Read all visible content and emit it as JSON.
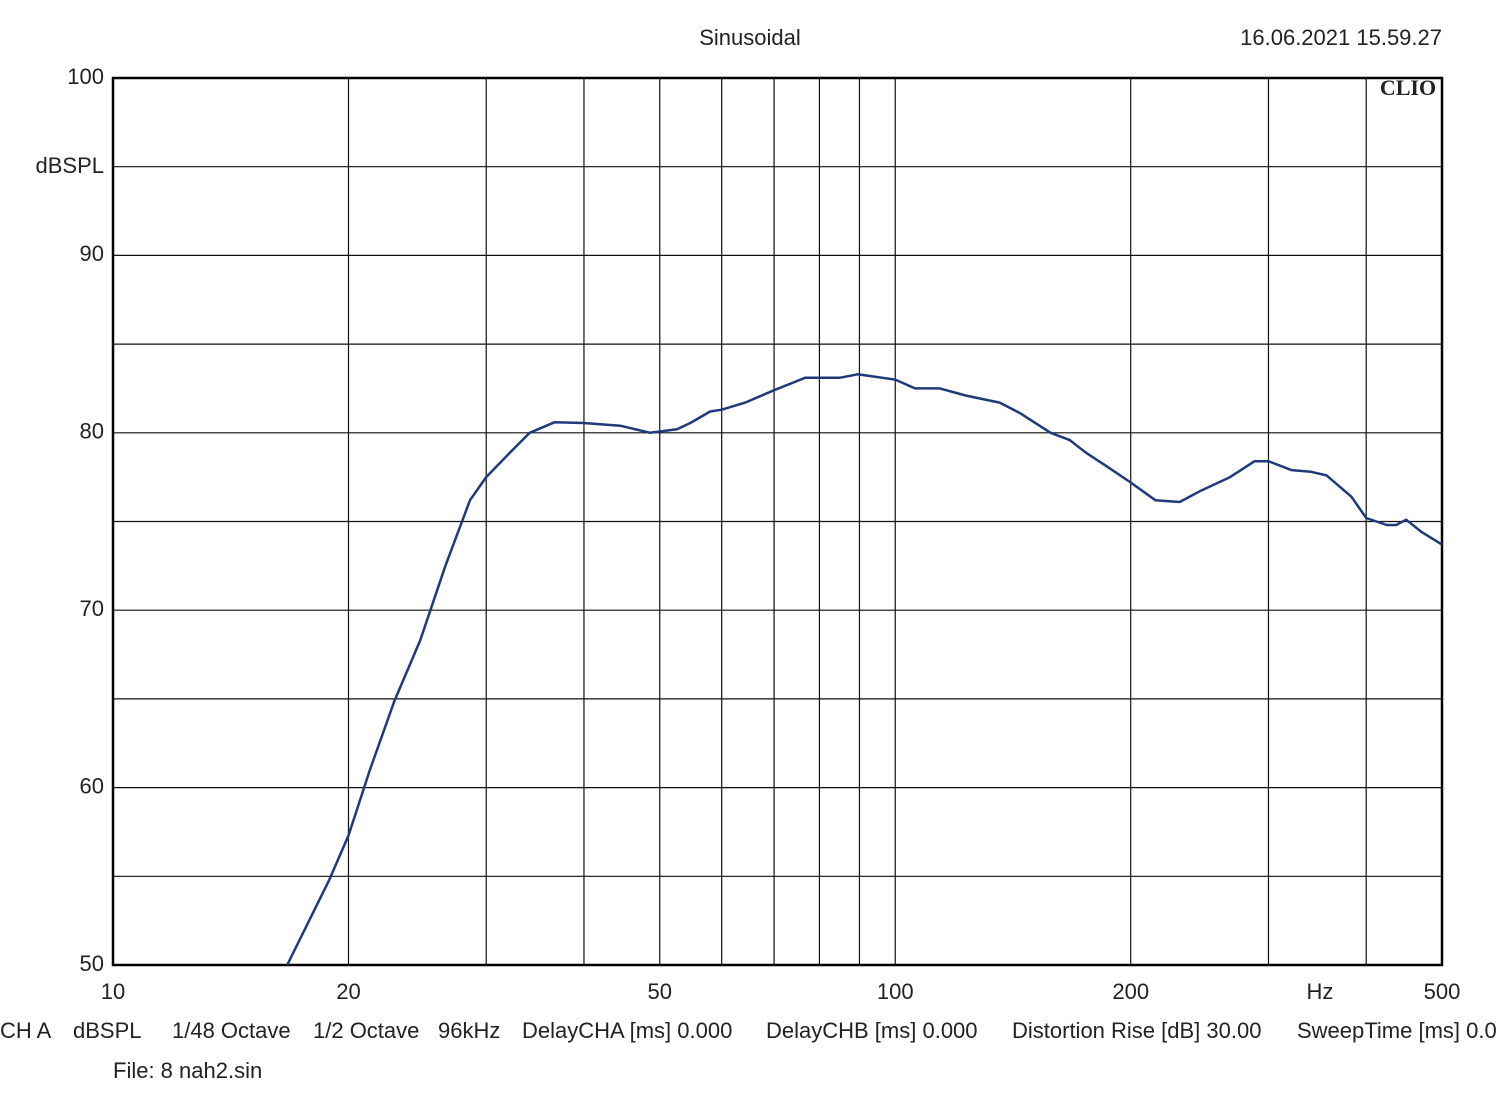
{
  "chart_data": {
    "type": "line",
    "title": "Sinusoidal",
    "timestamp": "16.06.2021 15.59.27",
    "brand": "CLIO",
    "y_label": "dBSPL",
    "x_unit": "Hz",
    "x_scale": "log",
    "xlim": [
      10,
      500
    ],
    "xticks": [
      10,
      20,
      50,
      100,
      200,
      500
    ],
    "xgrid_minor": [
      30,
      40,
      60,
      70,
      80,
      90,
      300,
      400
    ],
    "ylim": [
      50,
      100
    ],
    "yticks": [
      50,
      60,
      70,
      80,
      90,
      100
    ],
    "ygrid_minor": [
      55,
      65,
      75,
      85,
      95
    ],
    "grid": true,
    "series": [
      {
        "name": "CH A",
        "color": "#1f3a7a",
        "x": [
          16.7,
          18.9,
          20,
          21.3,
          22.9,
          24.7,
          26.6,
          28.6,
          30,
          32.2,
          34.1,
          36.7,
          40,
          44.5,
          48.6,
          52.6,
          54.7,
          58,
          60,
          64.3,
          70,
          76.7,
          80,
          84.9,
          89.5,
          100,
          106,
          114,
          123,
          136,
          144.5,
          158,
          167,
          175,
          188,
          200,
          215,
          231,
          245,
          268,
          288,
          300,
          321,
          340,
          356,
          383,
          400,
          425,
          437,
          450,
          471,
          500
        ],
        "values": [
          50,
          54.8,
          57.3,
          61.0,
          64.9,
          68.3,
          72.5,
          76.2,
          77.5,
          78.9,
          80.0,
          80.6,
          80.55,
          80.4,
          80.0,
          80.2,
          80.55,
          81.2,
          81.3,
          81.7,
          82.4,
          83.1,
          83.1,
          83.1,
          83.3,
          83.0,
          82.5,
          82.5,
          82.1,
          81.7,
          81.1,
          80.0,
          79.6,
          78.9,
          78.0,
          77.2,
          76.2,
          76.1,
          76.7,
          77.5,
          78.4,
          78.4,
          77.9,
          77.8,
          77.6,
          76.4,
          75.2,
          74.8,
          74.8,
          75.1,
          74.4,
          73.7
        ]
      }
    ],
    "settings": [
      "CH A",
      "dBSPL",
      "1/48 Octave",
      "1/2 Octave",
      "96kHz",
      "DelayCHA [ms] 0.000",
      "DelayCHB [ms] 0.000",
      "Distortion Rise [dB] 30.00",
      "SweepTime [ms] 0.0"
    ],
    "file": "File: 8 nah2.sin"
  }
}
